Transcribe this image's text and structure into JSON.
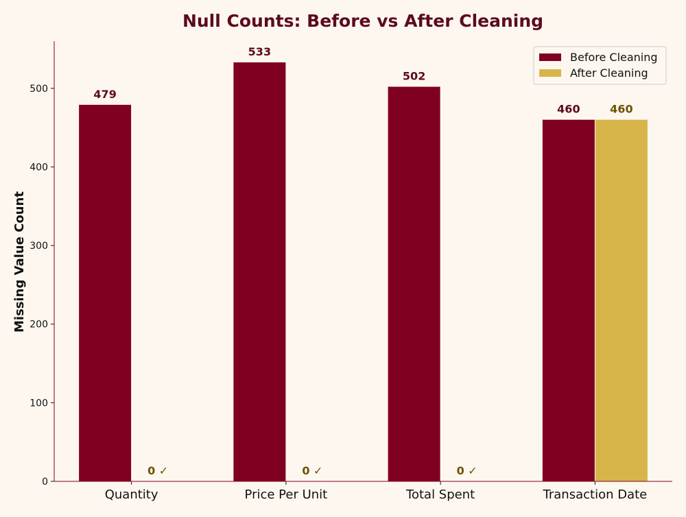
{
  "chart_data": {
    "type": "bar",
    "title": "Null Counts: Before vs After Cleaning",
    "xlabel": "",
    "ylabel": "Missing Value Count",
    "categories": [
      "Quantity",
      "Price Per Unit",
      "Total Spent",
      "Transaction Date"
    ],
    "series": [
      {
        "name": "Before Cleaning",
        "values": [
          479,
          533,
          502,
          460
        ],
        "color": "#800020",
        "labels": [
          "479",
          "533",
          "502",
          "460"
        ]
      },
      {
        "name": "After Cleaning",
        "values": [
          0,
          0,
          0,
          460
        ],
        "color": "#d8b54a",
        "labels": [
          "0 ✓",
          "0 ✓",
          "0 ✓",
          "460"
        ]
      }
    ],
    "ylim": [
      0,
      560
    ],
    "yticks": [
      0,
      100,
      200,
      300,
      400,
      500
    ],
    "grid": false,
    "legend_position": "top-right"
  }
}
